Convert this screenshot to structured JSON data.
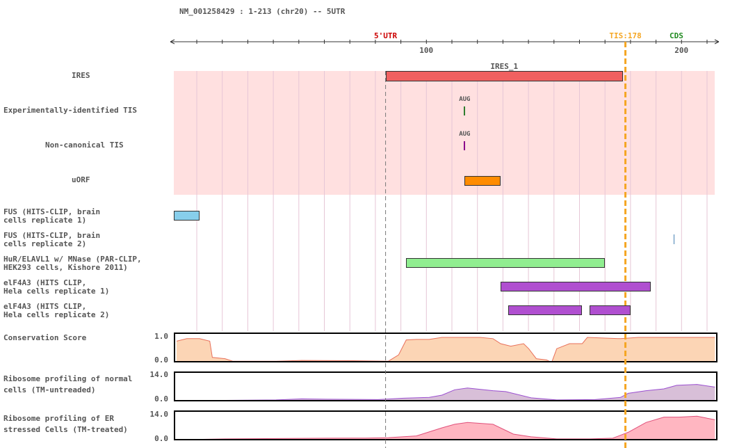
{
  "header": {
    "transcript": "NM_001258429 : 1-213 (chr20) -- 5UTR"
  },
  "axis": {
    "region_start": 1,
    "region_end": 213,
    "ticks": [
      {
        "value": 100,
        "label": "100"
      },
      {
        "value": 200,
        "label": "200"
      }
    ]
  },
  "markers": [
    {
      "label": "5'UTR",
      "position": 84,
      "color": "#cc0000"
    },
    {
      "label": "TIS:178",
      "position": 178,
      "color": "#f5a623"
    },
    {
      "label": "CDS",
      "position": 198,
      "color": "#228b22"
    }
  ],
  "tracks": {
    "ires": {
      "label": "IRES",
      "features": [
        {
          "name": "IRES_1",
          "start": 84,
          "end": 177,
          "color": "#f06060"
        }
      ]
    },
    "exp_tis": {
      "label": "Experimentally-identified TIS",
      "sites": [
        {
          "name": "AUG",
          "position": 115,
          "color": "#2e7d2e"
        }
      ]
    },
    "noncanon_tis": {
      "label": "Non-canonical TIS",
      "sites": [
        {
          "name": "AUG",
          "position": 115,
          "color": "#8b008b"
        }
      ]
    },
    "uorf": {
      "label": "uORF",
      "features": [
        {
          "start": 115,
          "end": 129,
          "color": "#ff8c00"
        }
      ]
    },
    "fus1": {
      "label": "FUS (HITS-CLIP, brain\ncells replicate 1)",
      "features": [
        {
          "start": 1,
          "end": 11,
          "color": "#87ceeb"
        }
      ]
    },
    "fus2": {
      "label": "FUS (HITS-CLIP, brain\ncells replicate 2)",
      "features": [
        {
          "start": 197,
          "end": 197,
          "color": "#4682b4"
        }
      ]
    },
    "hur": {
      "label": "HuR/ELAVL1 w/ MNase (PAR-CLIP,\nHEK293 cells, Kishore 2011)",
      "features": [
        {
          "start": 92,
          "end": 170,
          "color": "#90ee90"
        }
      ]
    },
    "eif4a3_1": {
      "label": "elF4A3 (HITS CLIP,\nHela cells replicate 1)",
      "features": [
        {
          "start": 129,
          "end": 188,
          "color": "#b04fd0"
        }
      ]
    },
    "eif4a3_2": {
      "label": "elF4A3 (HITS CLIP,\nHela cells replicate 2)",
      "features": [
        {
          "start": 132,
          "end": 161,
          "color": "#b04fd0"
        },
        {
          "start": 164,
          "end": 180,
          "color": "#b04fd0"
        }
      ]
    },
    "conservation": {
      "label": "Conservation Score",
      "max_label": "1.0",
      "min_label": "0.0",
      "max": 1.0,
      "fill": "#fcd5b5",
      "stroke": "#e8705a",
      "values": [
        [
          1,
          0.85
        ],
        [
          5,
          0.95
        ],
        [
          10,
          0.95
        ],
        [
          14,
          0.85
        ],
        [
          15,
          0.2
        ],
        [
          20,
          0.15
        ],
        [
          23,
          0.05
        ],
        [
          40,
          0.05
        ],
        [
          50,
          0.08
        ],
        [
          70,
          0.07
        ],
        [
          84,
          0.05
        ],
        [
          88,
          0.3
        ],
        [
          91,
          0.9
        ],
        [
          95,
          0.92
        ],
        [
          100,
          0.92
        ],
        [
          105,
          1.0
        ],
        [
          120,
          1.0
        ],
        [
          125,
          0.95
        ],
        [
          128,
          0.75
        ],
        [
          132,
          0.65
        ],
        [
          137,
          0.75
        ],
        [
          139,
          0.55
        ],
        [
          142,
          0.15
        ],
        [
          146,
          0.1
        ],
        [
          148,
          0.0
        ],
        [
          150,
          0.55
        ],
        [
          155,
          0.75
        ],
        [
          160,
          0.75
        ],
        [
          162,
          1.0
        ],
        [
          175,
          0.95
        ],
        [
          182,
          1.0
        ],
        [
          200,
          1.0
        ],
        [
          212,
          1.0
        ]
      ]
    },
    "ribo_normal": {
      "label": "Ribosome profiling of normal\ncells (TM-untreaded)",
      "max_label": "14.0",
      "min_label": "0.0",
      "max": 14.0,
      "fill": "#d8bfd8",
      "stroke": "#9b4fd0",
      "values": [
        [
          1,
          0.3
        ],
        [
          20,
          0.6
        ],
        [
          40,
          0.8
        ],
        [
          50,
          1.4
        ],
        [
          60,
          1.2
        ],
        [
          80,
          1.0
        ],
        [
          90,
          1.8
        ],
        [
          100,
          2.2
        ],
        [
          105,
          3.5
        ],
        [
          110,
          6.5
        ],
        [
          115,
          7.5
        ],
        [
          125,
          6.0
        ],
        [
          130,
          5.5
        ],
        [
          140,
          2.0
        ],
        [
          150,
          0.8
        ],
        [
          165,
          1.0
        ],
        [
          175,
          2.2
        ],
        [
          178,
          4.5
        ],
        [
          185,
          6.0
        ],
        [
          192,
          7.0
        ],
        [
          197,
          9.0
        ],
        [
          205,
          9.5
        ],
        [
          212,
          8.0
        ]
      ]
    },
    "ribo_er": {
      "label": "Ribosome profiling of ER\nstressed Cells (TM-treated)",
      "max_label": "14.0",
      "min_label": "0.0",
      "max": 14.0,
      "fill": "#ffb6c1",
      "stroke": "#e0507a",
      "values": [
        [
          1,
          0.3
        ],
        [
          20,
          0.8
        ],
        [
          40,
          1.0
        ],
        [
          60,
          1.2
        ],
        [
          75,
          1.3
        ],
        [
          84,
          1.5
        ],
        [
          95,
          2.5
        ],
        [
          105,
          7.0
        ],
        [
          110,
          9.0
        ],
        [
          115,
          10.0
        ],
        [
          125,
          9.0
        ],
        [
          133,
          3.5
        ],
        [
          140,
          2.0
        ],
        [
          150,
          0.8
        ],
        [
          163,
          0.8
        ],
        [
          172,
          1.2
        ],
        [
          178,
          4.5
        ],
        [
          185,
          10.0
        ],
        [
          192,
          13.0
        ],
        [
          198,
          13.0
        ],
        [
          205,
          13.5
        ],
        [
          212,
          11.5
        ]
      ]
    }
  }
}
